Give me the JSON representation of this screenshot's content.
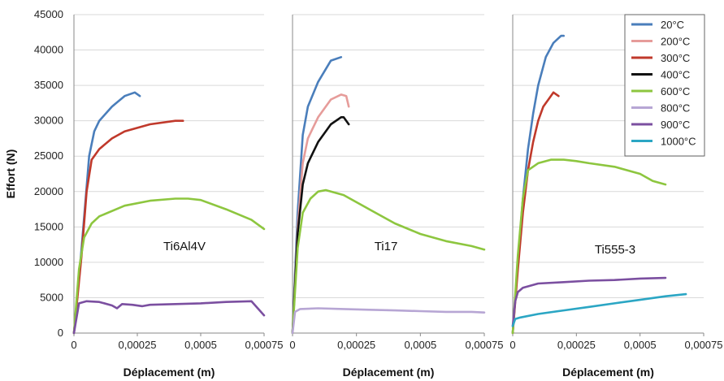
{
  "chart_data": {
    "type": "line",
    "ylabel": "Effort (N)",
    "yticks": [
      "45000",
      "40000",
      "35000",
      "30000",
      "25000",
      "20000",
      "15000",
      "10000",
      "5000",
      "0"
    ],
    "ylim": [
      0,
      45000
    ],
    "grid": "horizontal",
    "legend_position": "top-right",
    "legend": [
      {
        "name": "20°C",
        "color": "#4a7ebb"
      },
      {
        "name": "200°C",
        "color": "#e69c9a"
      },
      {
        "name": "300°C",
        "color": "#c0392b"
      },
      {
        "name": "400°C",
        "color": "#111111"
      },
      {
        "name": "600°C",
        "color": "#8dc63f"
      },
      {
        "name": "800°C",
        "color": "#b7a6d4"
      },
      {
        "name": "900°C",
        "color": "#7b4fa0"
      },
      {
        "name": "1000°C",
        "color": "#2ba6c4"
      }
    ],
    "panels": [
      {
        "label": "Ti6Al4V",
        "xlabel": "Déplacement (m)",
        "xlim": [
          0,
          0.00075
        ],
        "xticks": [
          "0",
          "0,00025",
          "0,0005",
          "0,00075"
        ],
        "series": [
          {
            "name": "20°C",
            "color": "#4a7ebb",
            "x": [
              0,
              3e-05,
              6e-05,
              8e-05,
              0.0001,
              0.00015,
              0.0002,
              0.00024,
              0.00026
            ],
            "y": [
              0,
              12000,
              25000,
              28500,
              30000,
              32000,
              33500,
              34000,
              33500
            ]
          },
          {
            "name": "300°C",
            "color": "#c0392b",
            "x": [
              0,
              3e-05,
              5e-05,
              7e-05,
              0.0001,
              0.00015,
              0.0002,
              0.0003,
              0.0004,
              0.00043
            ],
            "y": [
              0,
              11000,
              20000,
              24500,
              26000,
              27500,
              28500,
              29500,
              30000,
              30000
            ]
          },
          {
            "name": "600°C",
            "color": "#8dc63f",
            "x": [
              0,
              2e-05,
              4e-05,
              7e-05,
              0.0001,
              0.0002,
              0.0003,
              0.0004,
              0.00045,
              0.0005,
              0.0006,
              0.0007,
              0.00075
            ],
            "y": [
              0,
              9000,
              13500,
              15500,
              16500,
              18000,
              18700,
              19000,
              19000,
              18800,
              17500,
              16000,
              14700
            ]
          },
          {
            "name": "900°C",
            "color": "#7b4fa0",
            "x": [
              0,
              2e-05,
              5e-05,
              0.0001,
              0.00015,
              0.00017,
              0.00019,
              0.00023,
              0.00027,
              0.0003,
              0.0004,
              0.0005,
              0.0006,
              0.0007,
              0.00075
            ],
            "y": [
              0,
              4200,
              4500,
              4400,
              3900,
              3500,
              4100,
              4000,
              3800,
              4000,
              4100,
              4200,
              4400,
              4500,
              2500
            ]
          }
        ]
      },
      {
        "label": "Ti17",
        "xlabel": "Déplacement (m)",
        "xlim": [
          0,
          0.00075
        ],
        "xticks": [
          "0",
          "0,00025",
          "0,0005",
          "0,00075"
        ],
        "series": [
          {
            "name": "20°C",
            "color": "#4a7ebb",
            "x": [
              0,
              2e-05,
              4e-05,
              6e-05,
              0.0001,
              0.00015,
              0.00019
            ],
            "y": [
              0,
              17000,
              28000,
              32000,
              35500,
              38500,
              39000
            ]
          },
          {
            "name": "200°C",
            "color": "#e69c9a",
            "x": [
              0,
              2e-05,
              4e-05,
              6e-05,
              0.0001,
              0.00015,
              0.00019,
              0.00021,
              0.00022
            ],
            "y": [
              0,
              15000,
              24000,
              27500,
              30500,
              33000,
              33700,
              33500,
              32000
            ]
          },
          {
            "name": "400°C",
            "color": "#111111",
            "x": [
              0,
              2e-05,
              4e-05,
              6e-05,
              0.0001,
              0.00015,
              0.00019,
              0.0002,
              0.00022
            ],
            "y": [
              0,
              14000,
              21000,
              24000,
              27000,
              29500,
              30500,
              30500,
              29500
            ]
          },
          {
            "name": "600°C",
            "color": "#8dc63f",
            "x": [
              0,
              2e-05,
              4e-05,
              7e-05,
              0.0001,
              0.00013,
              0.0002,
              0.0003,
              0.0004,
              0.0005,
              0.0006,
              0.0007,
              0.00075
            ],
            "y": [
              0,
              12000,
              17000,
              19000,
              20000,
              20200,
              19500,
              17500,
              15500,
              14000,
              13000,
              12300,
              11800
            ]
          },
          {
            "name": "800°C",
            "color": "#b7a6d4",
            "x": [
              0,
              1e-05,
              3e-05,
              0.0001,
              0.0002,
              0.0003,
              0.0004,
              0.0005,
              0.0006,
              0.0007,
              0.00075
            ],
            "y": [
              0,
              3000,
              3400,
              3500,
              3400,
              3300,
              3200,
              3100,
              3000,
              3000,
              2900
            ]
          }
        ]
      },
      {
        "label": "Ti555-3",
        "xlabel": "Déplacement (m)",
        "xlim": [
          0,
          0.00075
        ],
        "xticks": [
          "0",
          "0,00025",
          "0,0005",
          "0,00075"
        ],
        "series": [
          {
            "name": "20°C",
            "color": "#4a7ebb",
            "x": [
              0,
              2e-05,
              4e-05,
              6e-05,
              8e-05,
              0.0001,
              0.00013,
              0.00016,
              0.00019,
              0.0002
            ],
            "y": [
              0,
              10000,
              19000,
              26000,
              31000,
              35000,
              39000,
              41000,
              42000,
              42000
            ]
          },
          {
            "name": "300°C",
            "color": "#c0392b",
            "x": [
              0,
              2e-05,
              4e-05,
              6e-05,
              8e-05,
              0.0001,
              0.00012,
              0.00014,
              0.00016,
              0.00018
            ],
            "y": [
              0,
              9000,
              17000,
              23000,
              27000,
              30000,
              32000,
              33000,
              34000,
              33500
            ]
          },
          {
            "name": "600°C",
            "color": "#8dc63f",
            "x": [
              0,
              2e-05,
              4e-05,
              6e-05,
              0.0001,
              0.00015,
              0.0002,
              0.00025,
              0.0003,
              0.0004,
              0.0005,
              0.00055,
              0.0006
            ],
            "y": [
              0,
              11000,
              19000,
              23000,
              24000,
              24500,
              24500,
              24300,
              24000,
              23500,
              22500,
              21500,
              21000
            ]
          },
          {
            "name": "900°C",
            "color": "#7b4fa0",
            "x": [
              0,
              1e-05,
              2e-05,
              4e-05,
              0.0001,
              0.0002,
              0.0003,
              0.0004,
              0.0005,
              0.0006
            ],
            "y": [
              1000,
              4500,
              5800,
              6400,
              7000,
              7200,
              7400,
              7500,
              7700,
              7800
            ]
          },
          {
            "name": "1000°C",
            "color": "#2ba6c4",
            "x": [
              0,
              1e-05,
              3e-05,
              0.0001,
              0.0002,
              0.0003,
              0.0004,
              0.0005,
              0.0006,
              0.00068
            ],
            "y": [
              1000,
              2000,
              2200,
              2700,
              3200,
              3700,
              4200,
              4700,
              5200,
              5500
            ]
          }
        ]
      }
    ]
  }
}
